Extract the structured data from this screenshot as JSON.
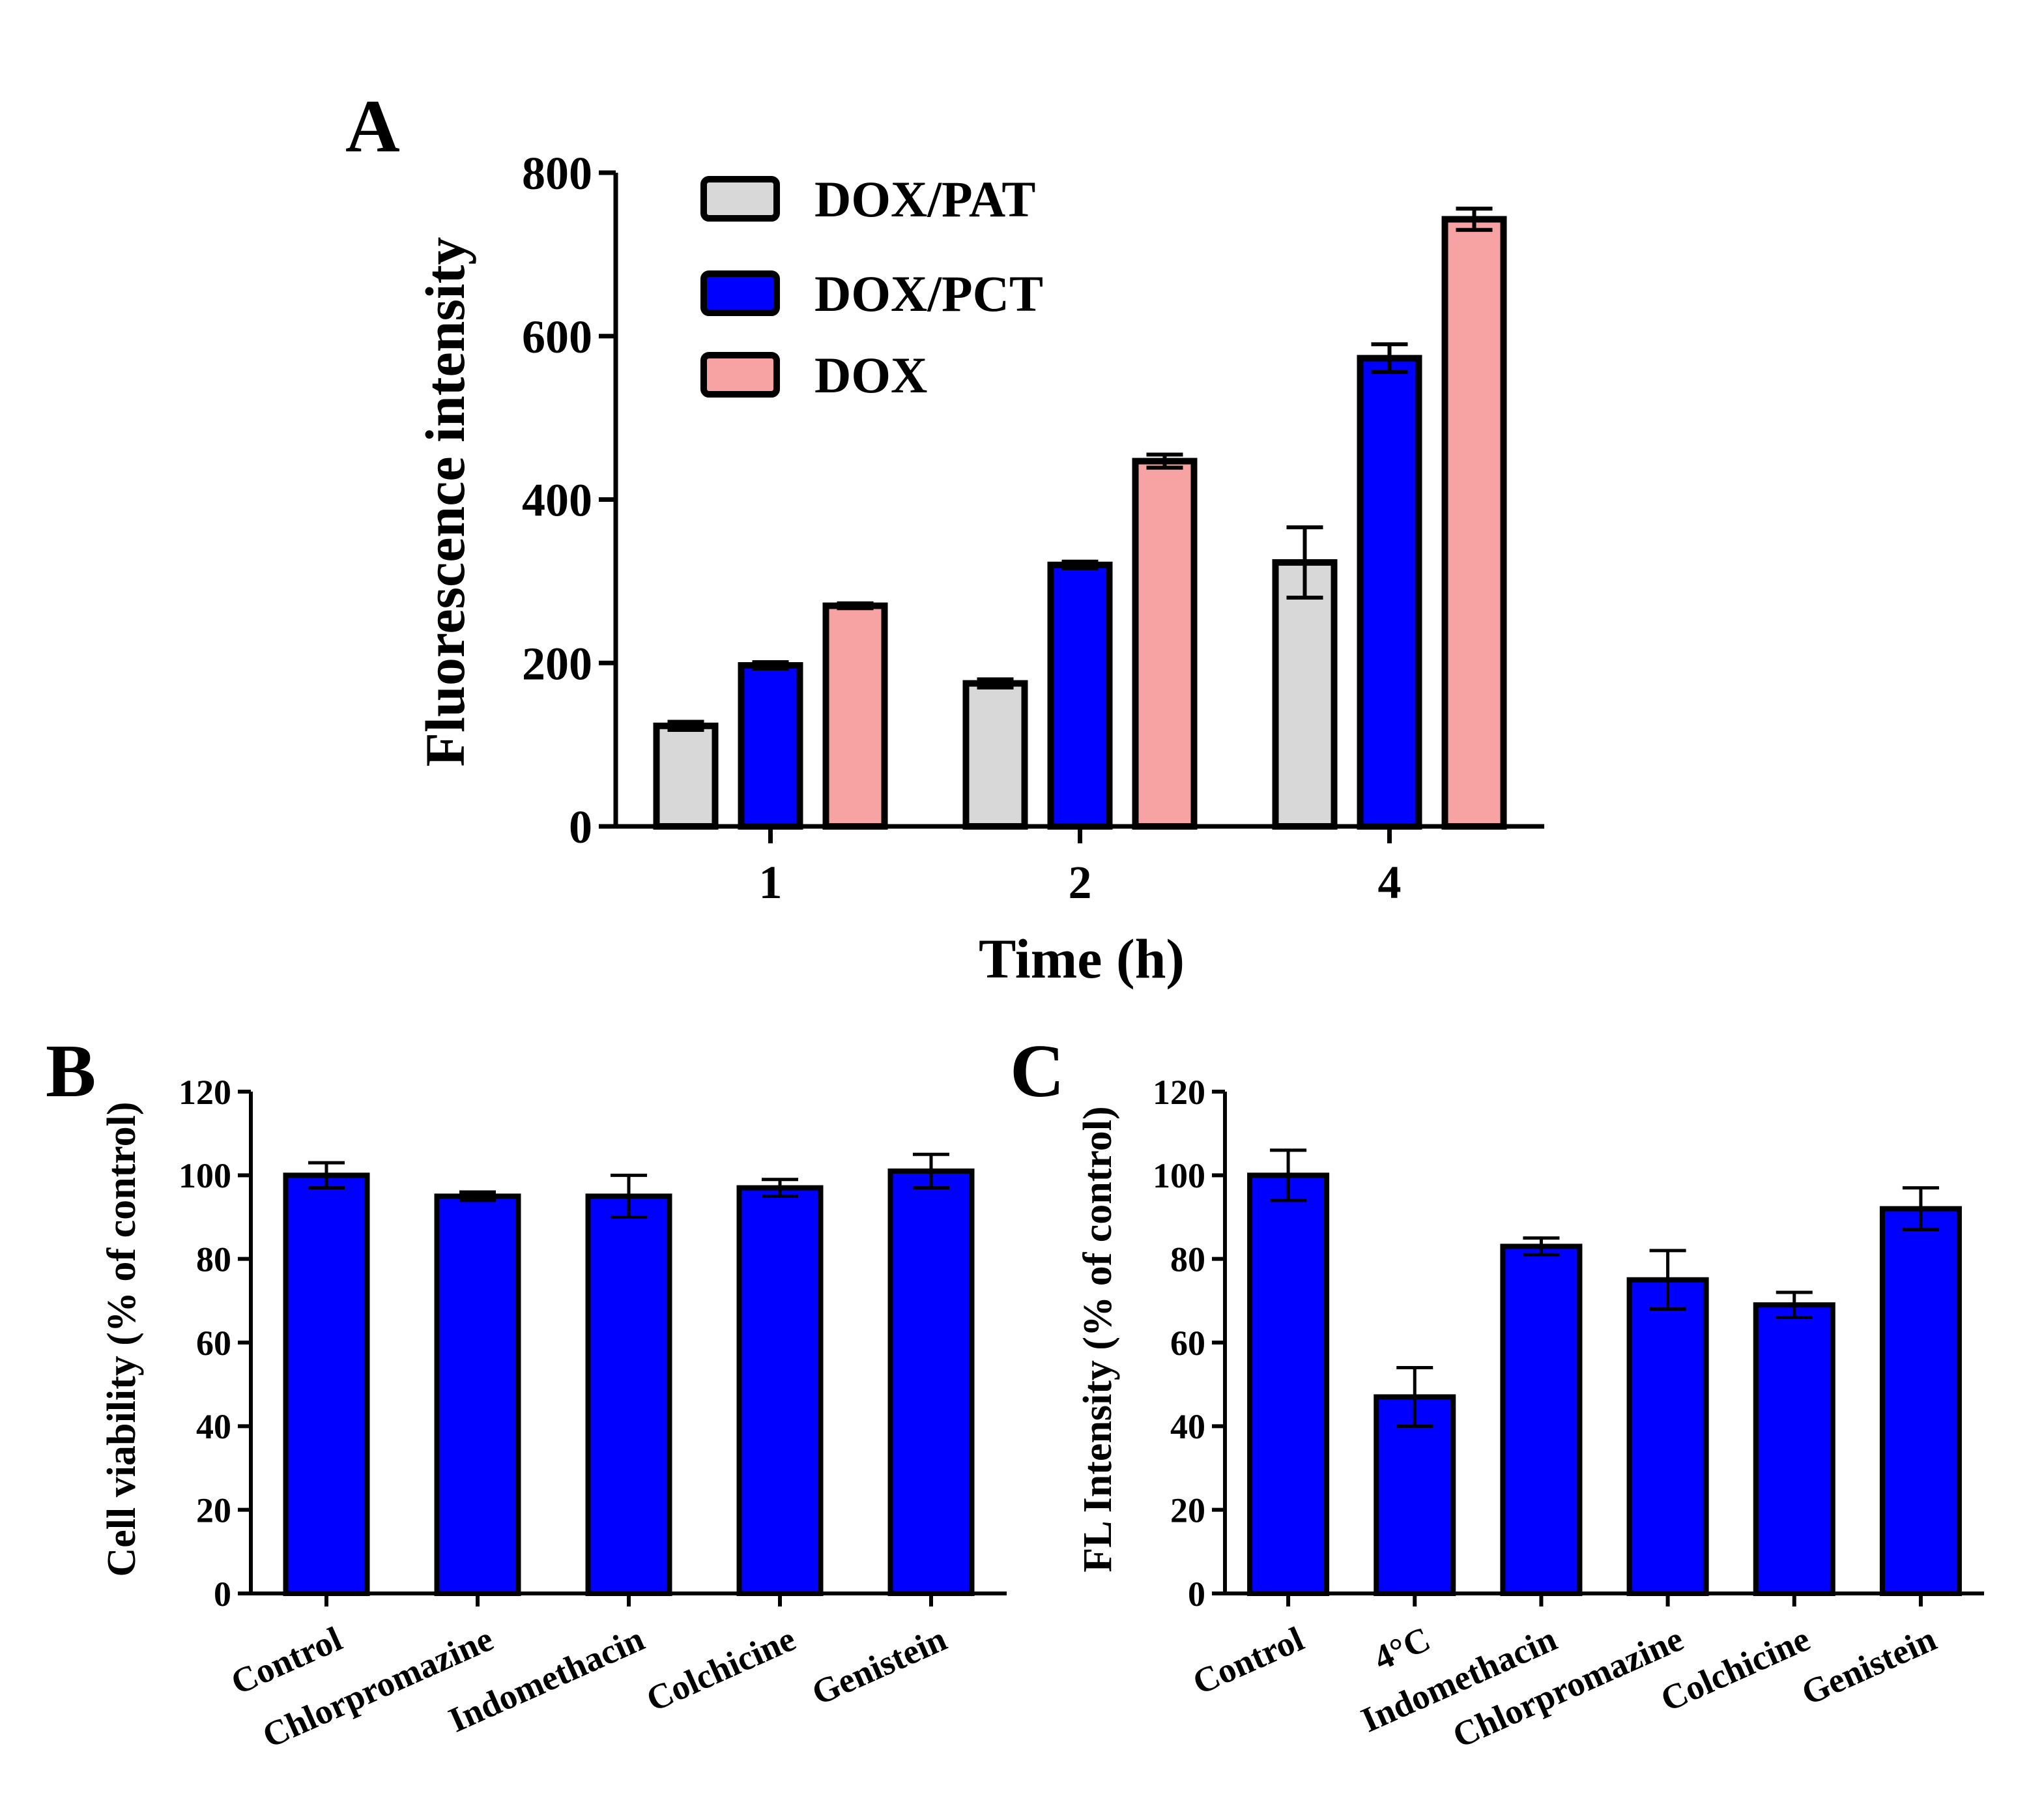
{
  "chart_data": [
    {
      "type": "bar",
      "panel_label": "A",
      "title": "",
      "xlabel": "Time (h)",
      "ylabel": "Fluorescence intensity",
      "categories": [
        "1",
        "2",
        "4"
      ],
      "ylim": [
        0,
        800
      ],
      "yticks": [
        0,
        200,
        400,
        600,
        800
      ],
      "legend_position": "top-left",
      "series": [
        {
          "name": "DOX/PAT",
          "color": "#d8d8d8",
          "values": [
            123,
            175,
            323
          ],
          "errors": [
            5,
            5,
            43
          ]
        },
        {
          "name": "DOX/PCT",
          "color": "#0000ff",
          "values": [
            197,
            320,
            573
          ],
          "errors": [
            4,
            4,
            17
          ]
        },
        {
          "name": "DOX",
          "color": "#f8a3a3",
          "values": [
            270,
            447,
            743
          ],
          "errors": [
            3,
            8,
            13
          ]
        }
      ]
    },
    {
      "type": "bar",
      "panel_label": "B",
      "title": "",
      "xlabel": "",
      "ylabel": "Cell viability (% of control)",
      "categories": [
        "Control",
        "Chlorpromazine",
        "Indomethacin",
        "Colchicine",
        "Genistein"
      ],
      "ylim": [
        0,
        120
      ],
      "yticks": [
        0,
        20,
        40,
        60,
        80,
        100,
        120
      ],
      "series": [
        {
          "name": "Cell viability",
          "color": "#0000ff",
          "values": [
            100,
            95,
            95,
            97,
            101
          ],
          "errors": [
            3,
            1,
            5,
            2,
            4
          ]
        }
      ]
    },
    {
      "type": "bar",
      "panel_label": "C",
      "title": "",
      "xlabel": "",
      "ylabel": "FL Intensity (% of control)",
      "categories": [
        "Control",
        "4°C",
        "Indomethacin",
        "Chlorpromazine",
        "Colchicine",
        "Genistein"
      ],
      "ylim": [
        0,
        120
      ],
      "yticks": [
        0,
        20,
        40,
        60,
        80,
        100,
        120
      ],
      "series": [
        {
          "name": "FL Intensity",
          "color": "#0000ff",
          "values": [
            100,
            47,
            83,
            75,
            69,
            92
          ],
          "errors": [
            6,
            7,
            2,
            7,
            3,
            5
          ]
        }
      ]
    }
  ]
}
